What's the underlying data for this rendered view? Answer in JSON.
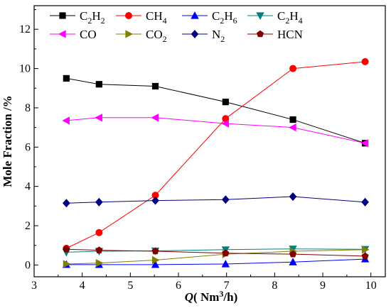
{
  "chart_data": {
    "type": "line",
    "xlabel": {
      "prefix": "Q",
      "text": "( Nm",
      "sup": "3",
      "suffix": "/h)"
    },
    "ylabel": "Mole Fraction /%",
    "xlim": [
      3,
      10.3
    ],
    "ylim": [
      -0.6,
      13.2
    ],
    "xticks": [
      3,
      4,
      5,
      6,
      7,
      8,
      9,
      10
    ],
    "yticks": [
      0,
      2,
      4,
      6,
      8,
      10,
      12
    ],
    "grid": false,
    "legend_position": "top",
    "x": [
      3.67,
      4.35,
      5.52,
      6.98,
      8.38,
      9.88
    ],
    "series": [
      {
        "name": "C2H2",
        "label": "C",
        "sub1": "2",
        "mid": "H",
        "sub2": "2",
        "color": "#000000",
        "marker": "square",
        "values": [
          9.5,
          9.2,
          9.1,
          8.3,
          7.4,
          6.2
        ]
      },
      {
        "name": "CH4",
        "label": "CH",
        "sub1": "4",
        "color": "#ff0000",
        "marker": "circle",
        "values": [
          0.85,
          1.65,
          3.55,
          7.45,
          10.0,
          10.35
        ]
      },
      {
        "name": "C2H6",
        "label": "C",
        "sub1": "2",
        "mid": "H",
        "sub2": "6",
        "color": "#0000ff",
        "marker": "triangle-up",
        "values": [
          0.02,
          0.02,
          0.02,
          0.05,
          0.15,
          0.3
        ]
      },
      {
        "name": "C2H4",
        "label": "C",
        "sub1": "2",
        "mid": "H",
        "sub2": "4",
        "color": "#008080",
        "marker": "triangle-down",
        "values": [
          0.65,
          0.7,
          0.72,
          0.78,
          0.82,
          0.8
        ]
      },
      {
        "name": "CO",
        "label": "CO",
        "color": "#ff00ff",
        "marker": "triangle-left",
        "values": [
          7.35,
          7.5,
          7.5,
          7.2,
          7.0,
          6.2
        ]
      },
      {
        "name": "CO2",
        "label": "CO",
        "sub1": "2",
        "color": "#808000",
        "marker": "triangle-right",
        "values": [
          0.05,
          0.1,
          0.25,
          0.55,
          0.7,
          0.78
        ]
      },
      {
        "name": "N2",
        "label": "N",
        "sub1": "2",
        "color": "#000080",
        "marker": "diamond",
        "values": [
          3.15,
          3.2,
          3.28,
          3.33,
          3.48,
          3.2
        ]
      },
      {
        "name": "HCN",
        "label": "HCN",
        "color": "#800000",
        "marker": "pentagon",
        "values": [
          0.8,
          0.75,
          0.7,
          0.6,
          0.55,
          0.45
        ]
      }
    ]
  }
}
